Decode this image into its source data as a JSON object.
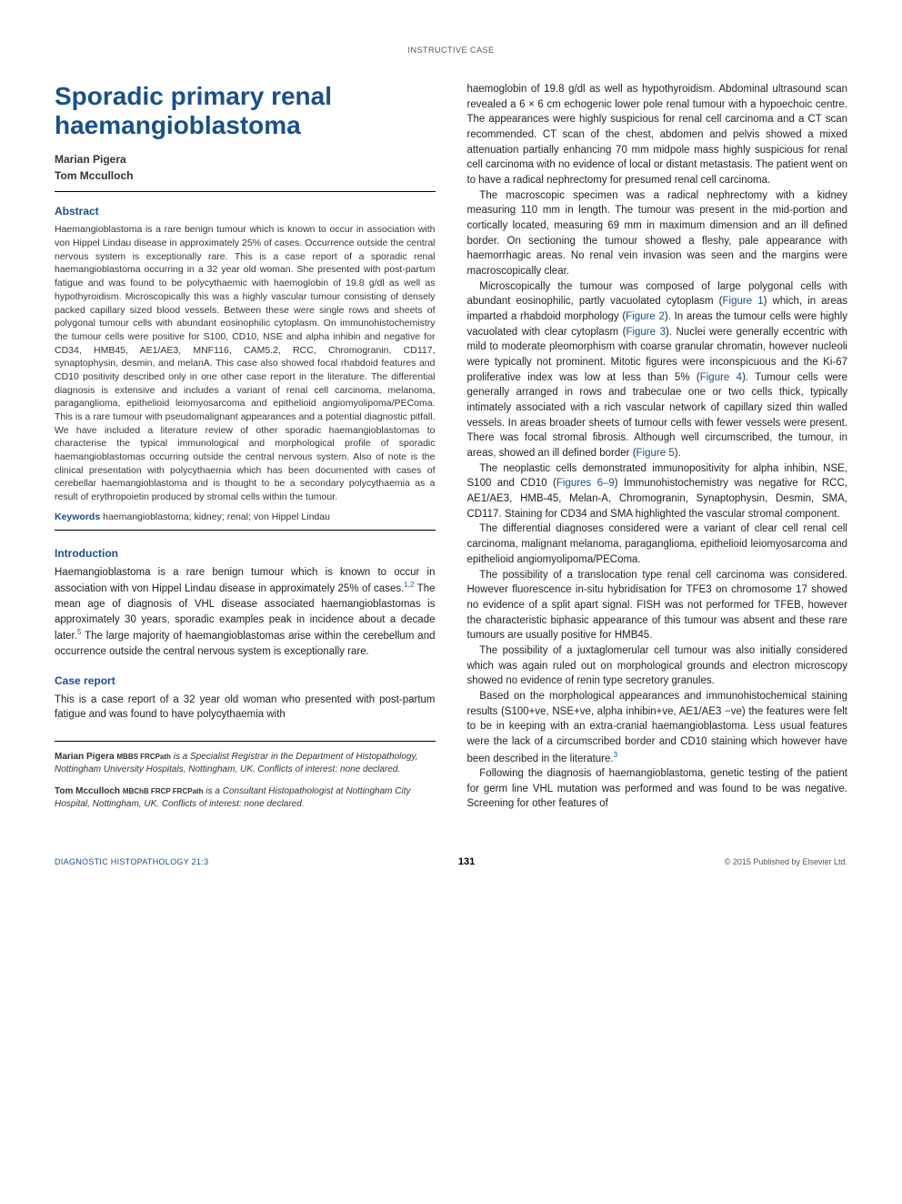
{
  "page": {
    "header_label": "INSTRUCTIVE CASE",
    "page_number": "131",
    "journal": "DIAGNOSTIC HISTOPATHOLOGY 21:3",
    "copyright": "© 2015 Published by Elsevier Ltd."
  },
  "colors": {
    "accent": "#1a4f8a",
    "text": "#333333",
    "background": "#ffffff",
    "rule": "#000000"
  },
  "typography": {
    "title_fontsize": 28,
    "body_fontsize": 11.5,
    "abstract_fontsize": 10.5,
    "heading_fontsize": 12,
    "footer_fontsize": 9
  },
  "article": {
    "title": "Sporadic primary renal haemangioblastoma",
    "authors": [
      "Marian Pigera",
      "Tom Mcculloch"
    ],
    "abstract_heading": "Abstract",
    "abstract": "Haemangioblastoma is a rare benign tumour which is known to occur in association with von Hippel Lindau disease in approximately 25% of cases. Occurrence outside the central nervous system is exceptionally rare. This is a case report of a sporadic renal haemangioblastoma occurring in a 32 year old woman. She presented with post-partum fatigue and was found to be polycythaemic with haemoglobin of 19.8 g/dl as well as hypothyroidism. Microscopically this was a highly vascular tumour consisting of densely packed capillary sized blood vessels. Between these were single rows and sheets of polygonal tumour cells with abundant eosinophilic cytoplasm. On immunohistochemistry the tumour cells were positive for S100, CD10, NSE and alpha inhibin and negative for CD34, HMB45, AE1/AE3, MNF116, CAM5.2, RCC, Chromogranin, CD117, synaptophysin, desmin, and melanA. This case also showed focal rhabdoid features and CD10 positivity described only in one other case report in the literature. The differential diagnosis is extensive and includes a variant of renal cell carcinoma, melanoma, paraganglioma, epithelioid leiomyosarcoma and epithelioid angiomyolipoma/PEComa. This is a rare tumour with pseudomalignant appearances and a potential diagnostic pitfall. We have included a literature review of other sporadic haemangioblastomas to characterise the typical immunological and morphological profile of sporadic haemangioblastomas occurring outside the central nervous system. Also of note is the clinical presentation with polycythaemia which has been documented with cases of cerebellar haemangioblastoma and is thought to be a secondary polycythaemia as a result of erythropoietin produced by stromal cells within the tumour.",
    "keywords_label": "Keywords",
    "keywords": "haemangioblastoma; kidney; renal; von Hippel Lindau",
    "intro_heading": "Introduction",
    "intro_text_pre": "Haemangioblastoma is a rare benign tumour which is known to occur in association with von Hippel Lindau disease in approximately 25% of cases.",
    "intro_ref1": "1,2",
    "intro_text_mid": " The mean age of diagnosis of VHL disease associated haemangioblastomas is approximately 30 years, sporadic examples peak in incidence about a decade later.",
    "intro_ref2": "5",
    "intro_text_post": " The large majority of haemangioblastomas arise within the cerebellum and occurrence outside the central nervous system is exceptionally rare.",
    "case_heading": "Case report",
    "case_p1": "This is a case report of a 32 year old woman who presented with post-partum fatigue and was found to have polycythaemia with",
    "right_p1": "haemoglobin of 19.8 g/dl as well as hypothyroidism. Abdominal ultrasound scan revealed a 6 × 6 cm echogenic lower pole renal tumour with a hypoechoic centre. The appearances were highly suspicious for renal cell carcinoma and a CT scan recommended. CT scan of the chest, abdomen and pelvis showed a mixed attenuation partially enhancing 70 mm midpole mass highly suspicious for renal cell carcinoma with no evidence of local or distant metastasis. The patient went on to have a radical nephrectomy for presumed renal cell carcinoma.",
    "right_p2": "The macroscopic specimen was a radical nephrectomy with a kidney measuring 110 mm in length. The tumour was present in the mid-portion and cortically located, measuring 69 mm in maximum dimension and an ill defined border. On sectioning the tumour showed a fleshy, pale appearance with haemorrhagic areas. No renal vein invasion was seen and the margins were macroscopically clear.",
    "right_p3_a": "Microscopically the tumour was composed of large polygonal cells with abundant eosinophilic, partly vacuolated cytoplasm (",
    "fig1": "Figure 1",
    "right_p3_b": ") which, in areas imparted a rhabdoid morphology (",
    "fig2": "Figure 2",
    "right_p3_c": "). In areas the tumour cells were highly vacuolated with clear cytoplasm (",
    "fig3": "Figure 3",
    "right_p3_d": "). Nuclei were generally eccentric with mild to moderate pleomorphism with coarse granular chromatin, however nucleoli were typically not prominent. Mitotic figures were inconspicuous and the Ki-67 proliferative index was low at less than 5% (",
    "fig4": "Figure 4",
    "right_p3_e": "). Tumour cells were generally arranged in rows and trabeculae one or two cells thick, typically intimately associated with a rich vascular network of capillary sized thin walled vessels. In areas broader sheets of tumour cells with fewer vessels were present. There was focal stromal fibrosis. Although well circumscribed, the tumour, in areas, showed an ill defined border (",
    "fig5": "Figure 5",
    "right_p3_f": ").",
    "right_p4_a": "The neoplastic cells demonstrated immunopositivity for alpha inhibin, NSE, S100 and CD10 (",
    "fig69": "Figures 6–9",
    "right_p4_b": ") Immunohistochemistry was negative for RCC, AE1/AE3, HMB-45, Melan-A, Chromogranin, Synaptophysin, Desmin, SMA, CD117. Staining for CD34 and SMA highlighted the vascular stromal component.",
    "right_p5": "The differential diagnoses considered were a variant of clear cell renal cell carcinoma, malignant melanoma, paraganglioma, epithelioid leiomyosarcoma and epithelioid angiomyolipoma/PEComa.",
    "right_p6": "The possibility of a translocation type renal cell carcinoma was considered. However fluorescence in-situ hybridisation for TFE3 on chromosome 17 showed no evidence of a split apart signal. FISH was not performed for TFEB, however the characteristic biphasic appearance of this tumour was absent and these rare tumours are usually positive for HMB45.",
    "right_p7": "The possibility of a juxtaglomerular cell tumour was also initially considered which was again ruled out on morphological grounds and electron microscopy showed no evidence of renin type secretory granules.",
    "right_p8_a": "Based on the morphological appearances and immunohistochemical staining results (S100+ve, NSE+ve, alpha inhibin+ve, AE1/AE3 −ve) the features were felt to be in keeping with an extra-cranial haemangioblastoma. Less usual features were the lack of a circumscribed border and CD10 staining which however have been described in the literature.",
    "right_p8_ref": "3",
    "right_p9": "Following the diagnosis of haemangioblastoma, genetic testing of the patient for germ line VHL mutation was performed and was found to be was negative. Screening for other features of"
  },
  "affiliations": {
    "a1_name": "Marian Pigera",
    "a1_creds": "MBBS FRCPath",
    "a1_text": " is a Specialist Registrar in the Department of Histopathology, Nottingham University Hospitals, Nottingham, UK. Conflicts of interest: none declared.",
    "a2_name": "Tom Mcculloch",
    "a2_creds": "MBChB FRCP FRCPath",
    "a2_text": " is a Consultant Histopathologist at Nottingham City Hospital, Nottingham, UK. Conflicts of interest: none declared."
  }
}
